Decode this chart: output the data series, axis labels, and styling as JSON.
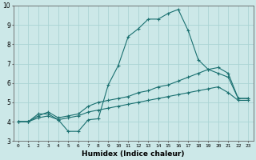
{
  "xlabel": "Humidex (Indice chaleur)",
  "xlim": [
    -0.5,
    23.5
  ],
  "ylim": [
    3,
    10
  ],
  "xticks": [
    0,
    1,
    2,
    3,
    4,
    5,
    6,
    7,
    8,
    9,
    10,
    11,
    12,
    13,
    14,
    15,
    16,
    17,
    18,
    19,
    20,
    21,
    22,
    23
  ],
  "yticks": [
    3,
    4,
    5,
    6,
    7,
    8,
    9,
    10
  ],
  "bg_color": "#cce8e8",
  "line_color": "#1a7070",
  "grid_color": "#aad4d4",
  "series": [
    {
      "x": [
        0,
        1,
        2,
        3,
        4,
        5,
        6,
        7,
        8,
        9,
        10,
        11,
        12,
        13,
        14,
        15,
        16,
        17,
        18,
        19,
        20,
        21,
        22,
        23
      ],
      "y": [
        4.0,
        4.0,
        4.4,
        4.4,
        4.1,
        3.5,
        3.5,
        4.1,
        4.15,
        5.9,
        6.9,
        8.4,
        8.8,
        9.3,
        9.3,
        9.6,
        9.8,
        8.7,
        7.2,
        6.7,
        6.5,
        6.3,
        5.2,
        5.2
      ]
    },
    {
      "x": [
        0,
        1,
        2,
        3,
        4,
        5,
        6,
        7,
        8,
        9,
        10,
        11,
        12,
        13,
        14,
        15,
        16,
        17,
        18,
        19,
        20,
        21,
        22,
        23
      ],
      "y": [
        4.0,
        4.0,
        4.3,
        4.5,
        4.2,
        4.3,
        4.4,
        4.8,
        5.0,
        5.1,
        5.2,
        5.3,
        5.5,
        5.6,
        5.8,
        5.9,
        6.1,
        6.3,
        6.5,
        6.7,
        6.8,
        6.5,
        5.2,
        5.2
      ]
    },
    {
      "x": [
        0,
        1,
        2,
        3,
        4,
        5,
        6,
        7,
        8,
        9,
        10,
        11,
        12,
        13,
        14,
        15,
        16,
        17,
        18,
        19,
        20,
        21,
        22,
        23
      ],
      "y": [
        4.0,
        4.0,
        4.2,
        4.3,
        4.1,
        4.2,
        4.3,
        4.5,
        4.6,
        4.7,
        4.8,
        4.9,
        5.0,
        5.1,
        5.2,
        5.3,
        5.4,
        5.5,
        5.6,
        5.7,
        5.8,
        5.5,
        5.1,
        5.1
      ]
    }
  ]
}
